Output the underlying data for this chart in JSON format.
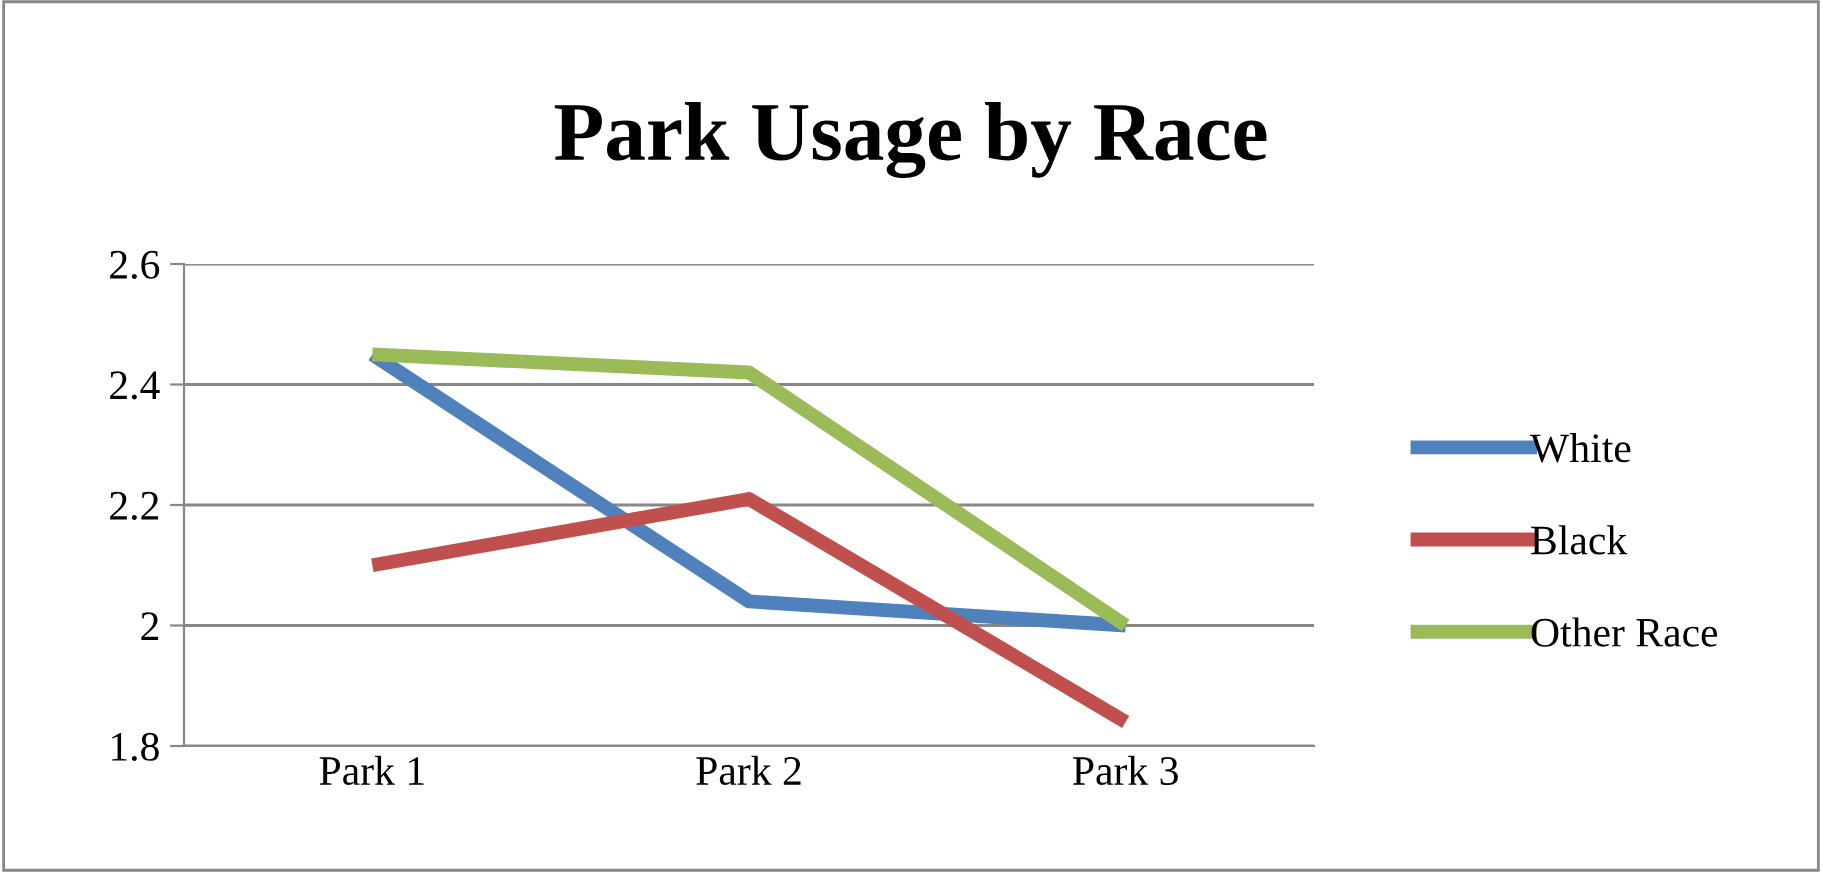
{
  "chart_data": {
    "type": "line",
    "title": "Park Usage by Race",
    "categories": [
      "Park 1",
      "Park 2",
      "Park 3"
    ],
    "series": [
      {
        "name": "White",
        "color": "#4f81bd",
        "values": [
          2.45,
          2.04,
          2.0
        ]
      },
      {
        "name": "Black",
        "color": "#c0504d",
        "values": [
          2.1,
          2.21,
          1.84
        ]
      },
      {
        "name": "Other Race",
        "color": "#9bbb59",
        "values": [
          2.45,
          2.42,
          2.0
        ]
      }
    ],
    "ylim": [
      1.8,
      2.6
    ],
    "yticks": [
      1.8,
      2,
      2.2,
      2.4,
      2.6
    ],
    "grid": "y",
    "legend": "right",
    "marker": "none",
    "line_style": "solid"
  }
}
